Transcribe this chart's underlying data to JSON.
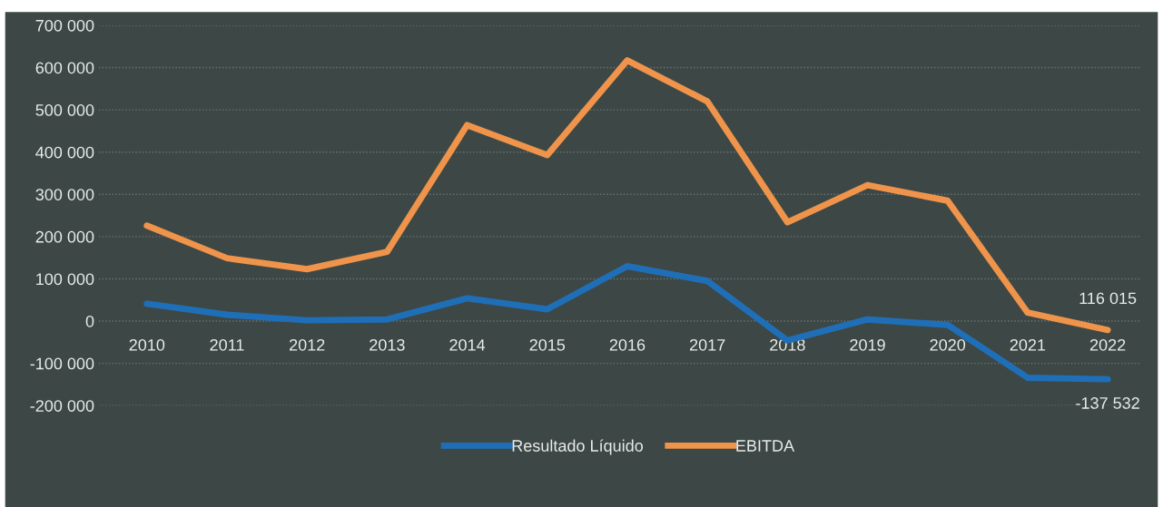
{
  "chart_data": {
    "type": "line",
    "categories": [
      "2010",
      "2011",
      "2012",
      "2013",
      "2014",
      "2015",
      "2016",
      "2017",
      "2018",
      "2019",
      "2020",
      "2021",
      "2022"
    ],
    "series": [
      {
        "name": "Resultado Líquido",
        "color": "#1f6fb8",
        "values": [
          41000,
          15000,
          2000,
          4000,
          54000,
          28000,
          130000,
          95000,
          -46000,
          4000,
          -9000,
          -134000,
          -137532
        ],
        "value_labels": [
          null,
          null,
          null,
          null,
          null,
          null,
          null,
          null,
          null,
          null,
          null,
          null,
          "-137 532"
        ]
      },
      {
        "name": "EBITDA",
        "color": "#ef944a",
        "values": [
          226000,
          149000,
          123000,
          164000,
          464000,
          393000,
          617000,
          520000,
          234000,
          322000,
          285000,
          20000,
          -21000
        ]
      }
    ],
    "annotations": [
      {
        "text": "116 015",
        "x": "2022",
        "y": -21000
      }
    ],
    "ylim": [
      -200000,
      700000
    ],
    "yticks": [
      {
        "value": -200000,
        "label": "-200 000"
      },
      {
        "value": -100000,
        "label": "-100 000"
      },
      0,
      {
        "value": 100000,
        "label": "100 000"
      },
      {
        "value": 200000,
        "label": "200 000"
      },
      {
        "value": 300000,
        "label": "300 000"
      },
      {
        "value": 400000,
        "label": "400 000"
      },
      {
        "value": 500000,
        "label": "500 000"
      },
      {
        "value": 600000,
        "label": "600 000"
      },
      {
        "value": 700000,
        "label": "700 000"
      }
    ],
    "grid": "y",
    "legend": "bottom",
    "marker": "none",
    "line_style": "solid"
  }
}
